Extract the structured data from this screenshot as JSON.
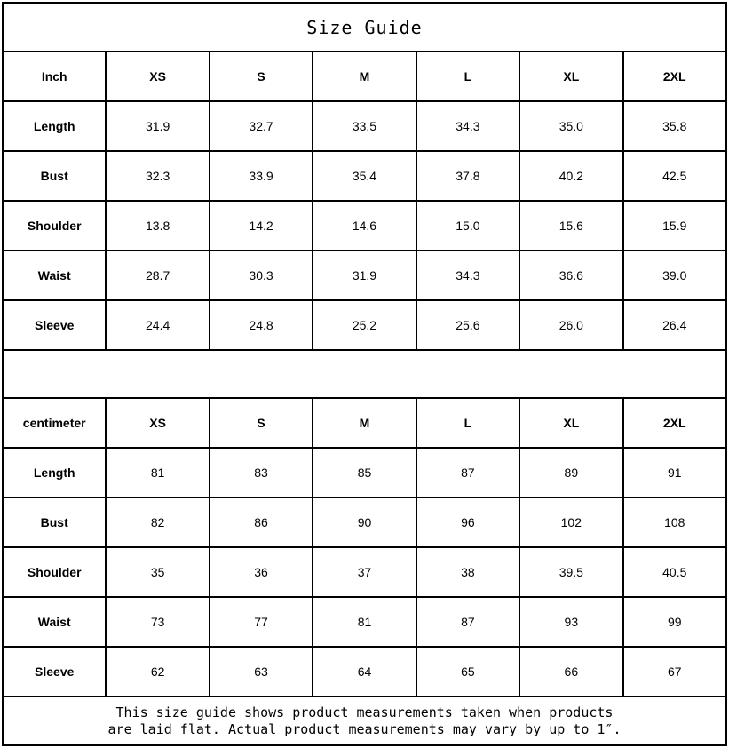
{
  "title": "Size Guide",
  "sizes": [
    "XS",
    "S",
    "M",
    "L",
    "XL",
    "2XL"
  ],
  "inch_table": {
    "unit_label": "Inch",
    "rows": [
      {
        "label": "Length",
        "values": [
          "31.9",
          "32.7",
          "33.5",
          "34.3",
          "35.0",
          "35.8"
        ]
      },
      {
        "label": "Bust",
        "values": [
          "32.3",
          "33.9",
          "35.4",
          "37.8",
          "40.2",
          "42.5"
        ]
      },
      {
        "label": "Shoulder",
        "values": [
          "13.8",
          "14.2",
          "14.6",
          "15.0",
          "15.6",
          "15.9"
        ]
      },
      {
        "label": "Waist",
        "values": [
          "28.7",
          "30.3",
          "31.9",
          "34.3",
          "36.6",
          "39.0"
        ]
      },
      {
        "label": "Sleeve",
        "values": [
          "24.4",
          "24.8",
          "25.2",
          "25.6",
          "26.0",
          "26.4"
        ]
      }
    ]
  },
  "cm_table": {
    "unit_label": "centimeter",
    "rows": [
      {
        "label": "Length",
        "values": [
          "81",
          "83",
          "85",
          "87",
          "89",
          "91"
        ]
      },
      {
        "label": "Bust",
        "values": [
          "82",
          "86",
          "90",
          "96",
          "102",
          "108"
        ]
      },
      {
        "label": "Shoulder",
        "values": [
          "35",
          "36",
          "37",
          "38",
          "39.5",
          "40.5"
        ]
      },
      {
        "label": "Waist",
        "values": [
          "73",
          "77",
          "81",
          "87",
          "93",
          "99"
        ]
      },
      {
        "label": "Sleeve",
        "values": [
          "62",
          "63",
          "64",
          "65",
          "66",
          "67"
        ]
      }
    ]
  },
  "footer": {
    "line1": "This size guide shows product measurements taken when products",
    "line2": "are laid flat. Actual product measurements may vary by up to 1″."
  },
  "colors": {
    "border": "#000000",
    "text": "#000000",
    "background": "#ffffff"
  }
}
